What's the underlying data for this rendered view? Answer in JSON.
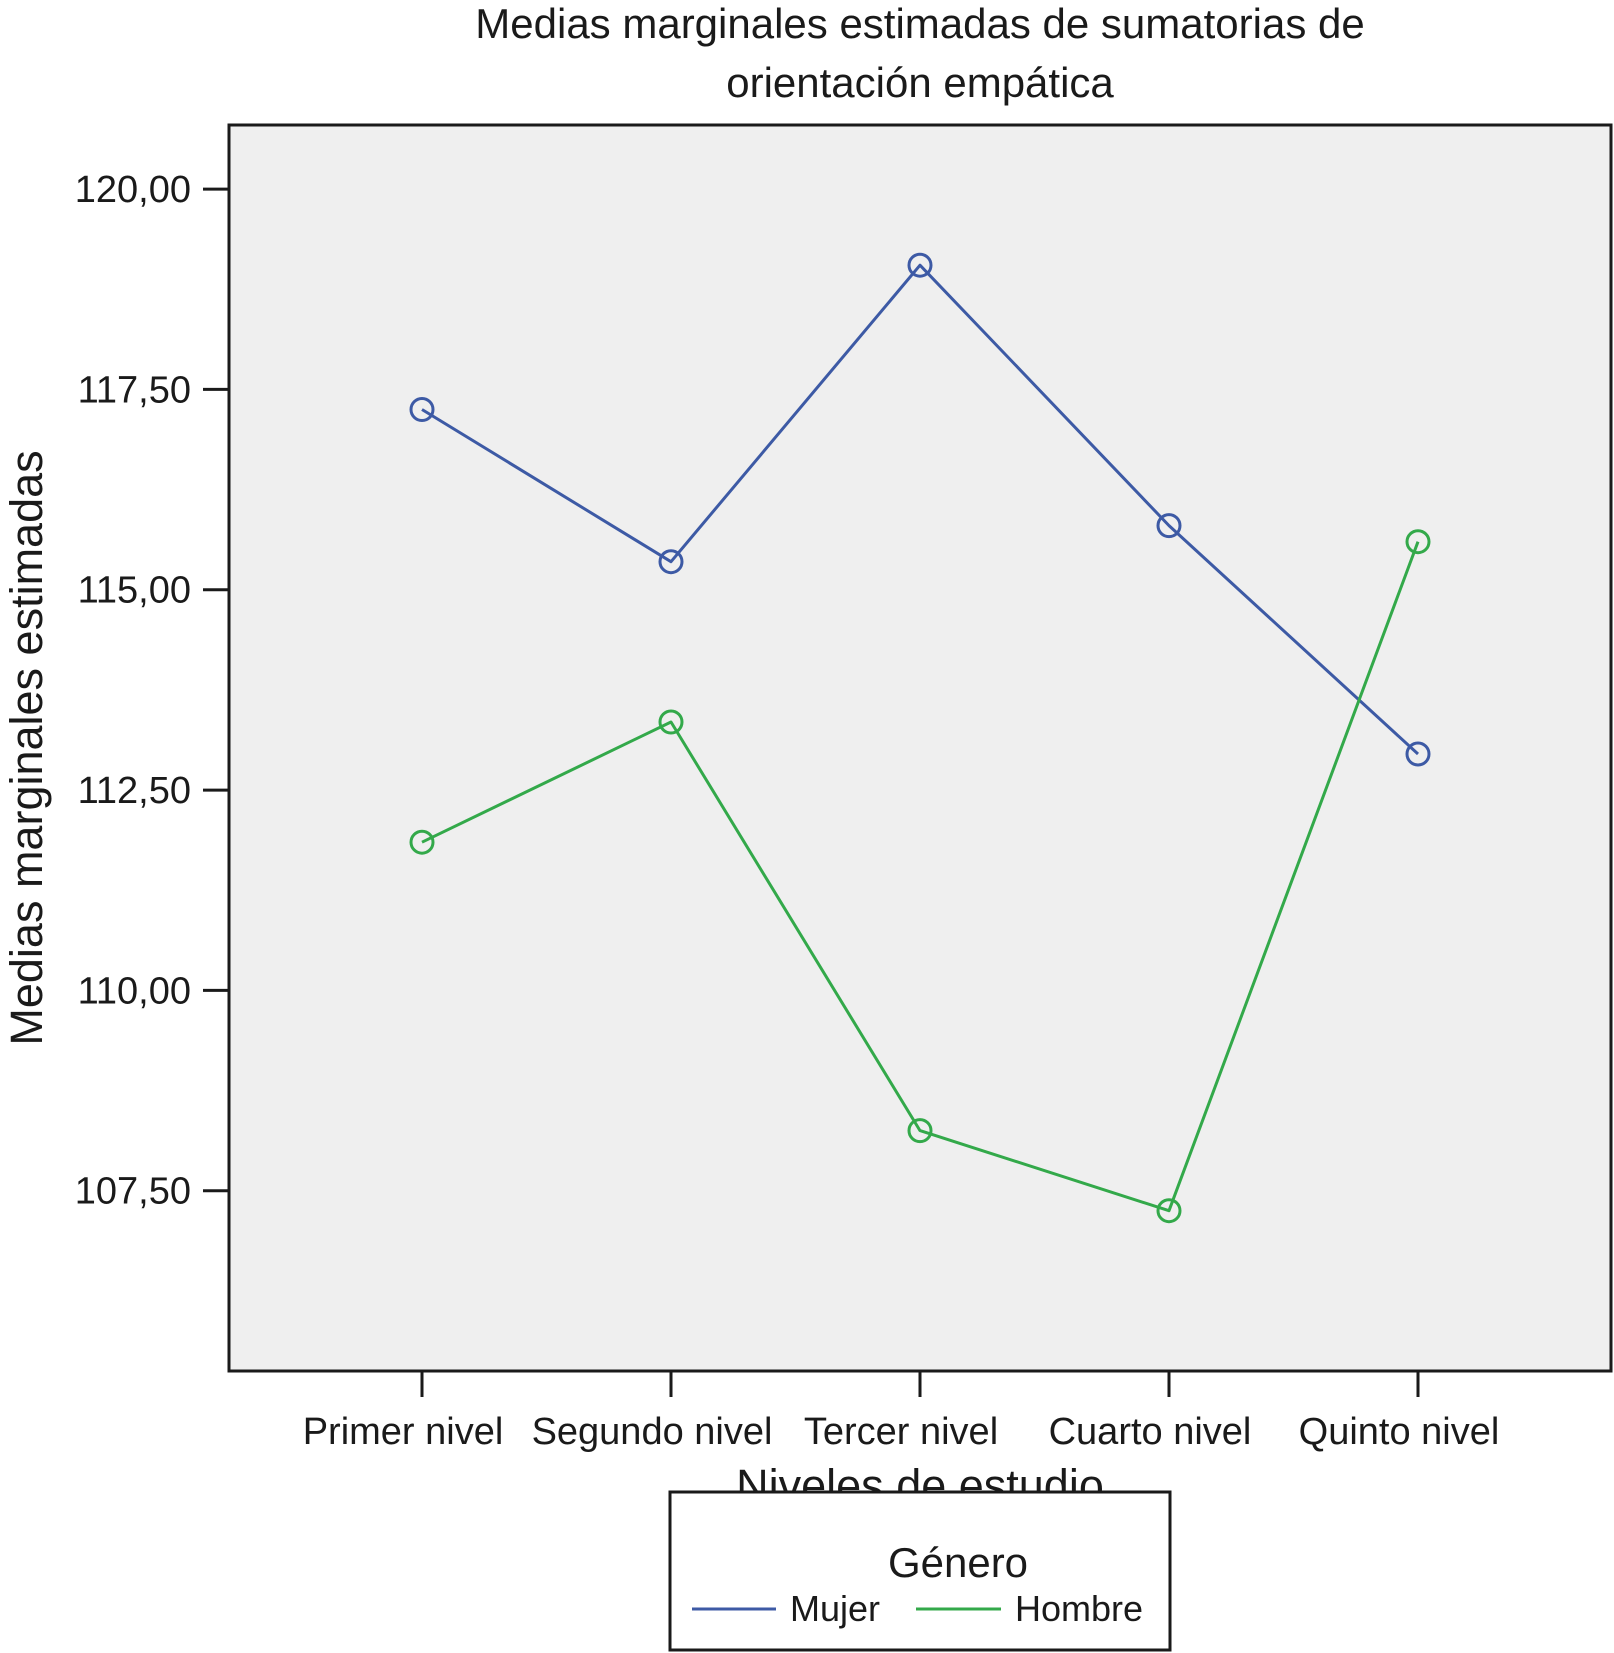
{
  "chart_data": {
    "type": "line",
    "title": "Medias marginales estimadas de sumatorias de orientación empática",
    "title_lines": [
      "Medias marginales estimadas de sumatorias de",
      "orientación empática"
    ],
    "xlabel": "Niveles de estudio",
    "ylabel": "Medias marginales estimadas",
    "categories": [
      "Primer nivel",
      "Segundo nivel",
      "Tercer nivel",
      "Cuarto nivel",
      "Quinto nivel"
    ],
    "y_ticks": [
      107.5,
      110.0,
      112.5,
      115.0,
      117.5,
      120.0
    ],
    "y_tick_labels": [
      "107,50",
      "110,00",
      "112,50",
      "115,00",
      "117,50",
      "120,00"
    ],
    "ylim": [
      105.25,
      120.8
    ],
    "grid": false,
    "markers": "hollow-circle",
    "series": [
      {
        "name": "Mujer",
        "color": "#3d5aa5",
        "values": [
          117.25,
          115.35,
          119.05,
          115.8,
          112.95
        ]
      },
      {
        "name": "Hombre",
        "color": "#33a94a",
        "values": [
          111.85,
          113.35,
          108.25,
          107.25,
          115.6
        ]
      }
    ],
    "legend": {
      "title": "Género",
      "position": "bottom-center"
    },
    "colors": {
      "plot_background": "#efefef",
      "axis": "#1a1a1a"
    }
  }
}
